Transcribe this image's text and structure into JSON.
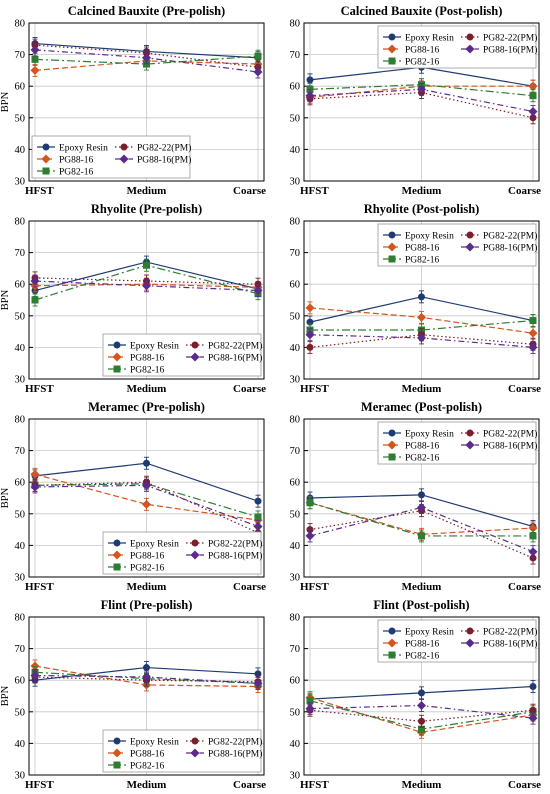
{
  "y_label": "BPN",
  "series_styles": [
    {
      "name": "Epoxy Resin",
      "color": "#1f3b73",
      "dash": "",
      "marker": "circle"
    },
    {
      "name": "PG88-16",
      "color": "#d2561e",
      "dash": "6,3",
      "marker": "diamond"
    },
    {
      "name": "PG82-16",
      "color": "#2e7d32",
      "dash": "8,3,2,3",
      "marker": "square"
    },
    {
      "name": "PG82-22(PM)",
      "color": "#7a1f2b",
      "dash": "1.5,2.5",
      "marker": "circle"
    },
    {
      "name": "PG88-16(PM)",
      "color": "#5b2b8c",
      "dash": "6,3,1.5,3",
      "marker": "diamond"
    }
  ],
  "chart_data": [
    {
      "type": "line",
      "title": "Calcined Bauxite (Pre-polish)",
      "categories": [
        "HFST",
        "Medium",
        "Coarse"
      ],
      "ylabel": "BPN",
      "ylim": [
        30,
        80
      ],
      "yticks": [
        30,
        40,
        50,
        60,
        70,
        80
      ],
      "grid": true,
      "legend_position": "bottom-left",
      "series": [
        {
          "name": "Epoxy Resin",
          "values": [
            73.5,
            71,
            69
          ]
        },
        {
          "name": "PG88-16",
          "values": [
            65,
            68,
            67
          ]
        },
        {
          "name": "PG82-16",
          "values": [
            68.5,
            67,
            69.5
          ]
        },
        {
          "name": "PG82-22(PM)",
          "values": [
            73,
            70.5,
            66
          ]
        },
        {
          "name": "PG88-16(PM)",
          "values": [
            71.5,
            69,
            64.5
          ]
        }
      ]
    },
    {
      "type": "line",
      "title": "Calcined Bauxite (Post-polish)",
      "categories": [
        "HFST",
        "Medium",
        "Coarse"
      ],
      "ylabel": "",
      "ylim": [
        30,
        80
      ],
      "yticks": [
        30,
        40,
        50,
        60,
        70,
        80
      ],
      "grid": true,
      "legend_position": "top-right",
      "series": [
        {
          "name": "Epoxy Resin",
          "values": [
            62,
            66,
            60
          ]
        },
        {
          "name": "PG88-16",
          "values": [
            56.5,
            60,
            60
          ]
        },
        {
          "name": "PG82-16",
          "values": [
            59,
            60.5,
            57
          ]
        },
        {
          "name": "PG82-22(PM)",
          "values": [
            56,
            58,
            50
          ]
        },
        {
          "name": "PG88-16(PM)",
          "values": [
            57,
            59,
            52
          ]
        }
      ]
    },
    {
      "type": "line",
      "title": "Rhyolite (Pre-polish)",
      "categories": [
        "HFST",
        "Medium",
        "Coarse"
      ],
      "ylabel": "BPN",
      "ylim": [
        30,
        80
      ],
      "yticks": [
        30,
        40,
        50,
        60,
        70,
        80
      ],
      "grid": true,
      "legend_position": "bottom-right",
      "series": [
        {
          "name": "Epoxy Resin",
          "values": [
            58,
            67,
            58.5
          ]
        },
        {
          "name": "PG88-16",
          "values": [
            59.5,
            60,
            59
          ]
        },
        {
          "name": "PG82-16",
          "values": [
            55,
            66,
            57
          ]
        },
        {
          "name": "PG82-22(PM)",
          "values": [
            62,
            61,
            60
          ]
        },
        {
          "name": "PG88-16(PM)",
          "values": [
            61,
            59.5,
            58
          ]
        }
      ]
    },
    {
      "type": "line",
      "title": "Rhyolite (Post-polish)",
      "categories": [
        "HFST",
        "Medium",
        "Coarse"
      ],
      "ylabel": "",
      "ylim": [
        30,
        80
      ],
      "yticks": [
        30,
        40,
        50,
        60,
        70,
        80
      ],
      "grid": true,
      "legend_position": "top-right",
      "series": [
        {
          "name": "Epoxy Resin",
          "values": [
            48,
            56,
            48.5
          ]
        },
        {
          "name": "PG88-16",
          "values": [
            52.5,
            49.5,
            44.5
          ]
        },
        {
          "name": "PG82-16",
          "values": [
            45.5,
            45.5,
            48.5
          ]
        },
        {
          "name": "PG82-22(PM)",
          "values": [
            40,
            44,
            41
          ]
        },
        {
          "name": "PG88-16(PM)",
          "values": [
            44,
            43,
            40
          ]
        }
      ]
    },
    {
      "type": "line",
      "title": "Meramec (Pre-polish)",
      "categories": [
        "HFST",
        "Medium",
        "Coarse"
      ],
      "ylabel": "BPN",
      "ylim": [
        30,
        80
      ],
      "yticks": [
        30,
        40,
        50,
        60,
        70,
        80
      ],
      "grid": true,
      "legend_position": "bottom-right",
      "series": [
        {
          "name": "Epoxy Resin",
          "values": [
            62,
            66,
            54
          ]
        },
        {
          "name": "PG88-16",
          "values": [
            62.5,
            53,
            48
          ]
        },
        {
          "name": "PG82-16",
          "values": [
            59,
            59.5,
            49
          ]
        },
        {
          "name": "PG82-22(PM)",
          "values": [
            59,
            60,
            44
          ]
        },
        {
          "name": "PG88-16(PM)",
          "values": [
            58.5,
            59,
            46
          ]
        }
      ]
    },
    {
      "type": "line",
      "title": "Meramec (Post-polish)",
      "categories": [
        "HFST",
        "Medium",
        "Coarse"
      ],
      "ylabel": "",
      "ylim": [
        30,
        80
      ],
      "yticks": [
        30,
        40,
        50,
        60,
        70,
        80
      ],
      "grid": true,
      "legend_position": "top-right",
      "series": [
        {
          "name": "Epoxy Resin",
          "values": [
            55,
            56,
            46
          ]
        },
        {
          "name": "PG88-16",
          "values": [
            53.5,
            43.5,
            45.5
          ]
        },
        {
          "name": "PG82-16",
          "values": [
            53.5,
            43,
            43
          ]
        },
        {
          "name": "PG82-22(PM)",
          "values": [
            45,
            51,
            36
          ]
        },
        {
          "name": "PG88-16(PM)",
          "values": [
            43,
            52,
            38
          ]
        }
      ]
    },
    {
      "type": "line",
      "title": "Flint (Pre-polish)",
      "categories": [
        "HFST",
        "Medium",
        "Coarse"
      ],
      "ylabel": "BPN",
      "ylim": [
        30,
        80
      ],
      "yticks": [
        30,
        40,
        50,
        60,
        70,
        80
      ],
      "grid": true,
      "legend_position": "bottom-right",
      "series": [
        {
          "name": "Epoxy Resin",
          "values": [
            60,
            64,
            62
          ]
        },
        {
          "name": "PG88-16",
          "values": [
            64.5,
            58.5,
            58
          ]
        },
        {
          "name": "PG82-16",
          "values": [
            62.5,
            60.5,
            59
          ]
        },
        {
          "name": "PG82-22(PM)",
          "values": [
            61,
            60,
            59.5
          ]
        },
        {
          "name": "PG88-16(PM)",
          "values": [
            61.5,
            61,
            59
          ]
        }
      ]
    },
    {
      "type": "line",
      "title": "Flint (Post-polish)",
      "categories": [
        "HFST",
        "Medium",
        "Coarse"
      ],
      "ylabel": "",
      "ylim": [
        30,
        80
      ],
      "yticks": [
        30,
        40,
        50,
        60,
        70,
        80
      ],
      "grid": true,
      "legend_position": "top-right",
      "series": [
        {
          "name": "Epoxy Resin",
          "values": [
            54,
            56,
            58
          ]
        },
        {
          "name": "PG88-16",
          "values": [
            54.5,
            43.5,
            49
          ]
        },
        {
          "name": "PG82-16",
          "values": [
            53.5,
            44.5,
            50
          ]
        },
        {
          "name": "PG82-22(PM)",
          "values": [
            50.5,
            47,
            50.5
          ]
        },
        {
          "name": "PG88-16(PM)",
          "values": [
            51,
            52,
            48
          ]
        }
      ]
    }
  ]
}
